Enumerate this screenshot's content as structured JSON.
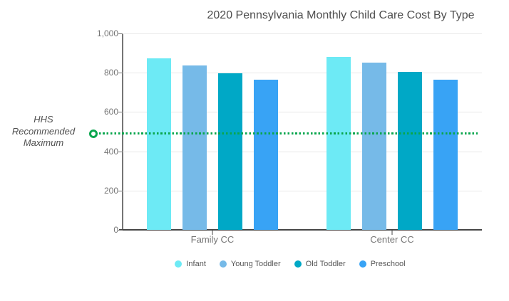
{
  "chart_data": {
    "type": "bar",
    "title": "2020 Pennsylvania Monthly Child Care Cost By Type",
    "categories": [
      "Family CC",
      "Center CC"
    ],
    "series": [
      {
        "name": "Infant",
        "color": "#6DEAF5",
        "values": [
          872,
          881
        ]
      },
      {
        "name": "Young Toddler",
        "color": "#76BAE8",
        "values": [
          838,
          850
        ]
      },
      {
        "name": "Old Toddler",
        "color": "#00A8C6",
        "values": [
          799,
          805
        ]
      },
      {
        "name": "Preschool",
        "color": "#38A3F5",
        "values": [
          765,
          766
        ]
      }
    ],
    "y_ticks": [
      "1,000",
      "800",
      "600",
      "400",
      "200",
      "0"
    ],
    "ylim": [
      0,
      1000
    ],
    "grid": true,
    "legend_position": "bottom",
    "reference_line": {
      "label": "HHS Recommended Maximum",
      "value": 490,
      "color": "#0AA64E",
      "style": "dotted"
    }
  },
  "annotation": {
    "lines": [
      "HHS",
      "Recommended",
      "Maximum"
    ]
  }
}
